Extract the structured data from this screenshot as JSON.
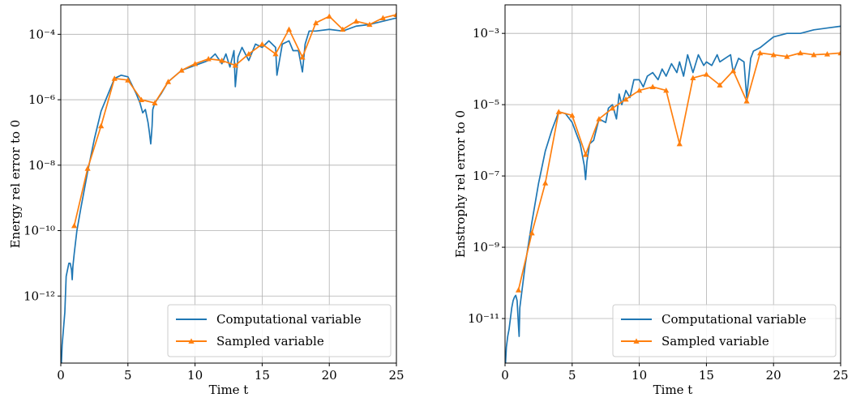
{
  "colors": {
    "computational": "#1f77b4",
    "sampled": "#ff7f0e",
    "grid": "#b0b0b0",
    "axes": "#000000"
  },
  "chart_data": [
    {
      "type": "line",
      "ylabel": "Energy rel error to 0",
      "xlabel": "Time t",
      "log_y": true,
      "xlim": [
        0,
        25
      ],
      "ylim_log10": [
        -14.05,
        -3.1
      ],
      "x_ticks": [
        0,
        5,
        10,
        15,
        20,
        25
      ],
      "y_ticks_log10": [
        -12,
        -10,
        -8,
        -6,
        -4
      ],
      "grid": true,
      "legend_position": "lower right",
      "legend": [
        "Computational variable",
        "Sampled variable"
      ],
      "series": [
        {
          "name": "Computational variable",
          "style": "line",
          "x": [
            0,
            0.1,
            0.2,
            0.3,
            0.4,
            0.5,
            0.6,
            0.7,
            0.8,
            0.85,
            0.9,
            1.0,
            1.2,
            1.5,
            2,
            2.5,
            3,
            3.5,
            4,
            4.5,
            5,
            5.3,
            5.6,
            5.9,
            6.1,
            6.3,
            6.5,
            6.6,
            6.7,
            6.75,
            6.8,
            6.85,
            7.0,
            7.5,
            8,
            9,
            10,
            11,
            11.5,
            12,
            12.3,
            12.6,
            12.9,
            13.0,
            13.2,
            13.5,
            14,
            14.5,
            15,
            15.5,
            16,
            16.1,
            16.5,
            17,
            17.3,
            17.7,
            18,
            18.2,
            18.5,
            19,
            20,
            21,
            22,
            23,
            24,
            25
          ],
          "y_log10": [
            -14.5,
            -13.5,
            -13.0,
            -12.5,
            -11.4,
            -11.2,
            -11.0,
            -11.0,
            -11.2,
            -11.5,
            -11.1,
            -10.7,
            -10.0,
            -9.3,
            -8.2,
            -7.2,
            -6.35,
            -5.85,
            -5.35,
            -5.25,
            -5.3,
            -5.55,
            -5.8,
            -6.1,
            -6.4,
            -6.3,
            -6.7,
            -7.0,
            -7.35,
            -7.1,
            -6.8,
            -6.3,
            -6.1,
            -5.8,
            -5.45,
            -5.1,
            -4.95,
            -4.8,
            -4.6,
            -4.9,
            -4.6,
            -5.0,
            -4.5,
            -5.6,
            -4.7,
            -4.4,
            -4.8,
            -4.3,
            -4.4,
            -4.2,
            -4.4,
            -5.25,
            -4.3,
            -4.2,
            -4.5,
            -4.5,
            -5.15,
            -4.3,
            -3.9,
            -3.9,
            -3.85,
            -3.9,
            -3.75,
            -3.7,
            -3.6,
            -3.5
          ]
        },
        {
          "name": "Sampled variable",
          "style": "line-markers",
          "x": [
            1,
            2,
            3,
            4,
            5,
            6,
            7,
            8,
            9,
            10,
            11,
            12,
            13,
            14,
            15,
            16,
            17,
            18,
            19,
            20,
            21,
            22,
            23,
            24,
            25
          ],
          "y_log10": [
            -9.85,
            -8.1,
            -6.8,
            -5.35,
            -5.4,
            -6.0,
            -6.1,
            -5.45,
            -5.1,
            -4.9,
            -4.75,
            -4.8,
            -4.95,
            -4.6,
            -4.3,
            -4.6,
            -3.85,
            -4.7,
            -3.65,
            -3.45,
            -3.85,
            -3.6,
            -3.7,
            -3.5,
            -3.4
          ]
        }
      ]
    },
    {
      "type": "line",
      "ylabel": "Enstrophy rel error to 0",
      "xlabel": "Time t",
      "log_y": true,
      "xlim": [
        0,
        25
      ],
      "ylim_log10": [
        -12.25,
        -2.2
      ],
      "x_ticks": [
        0,
        5,
        10,
        15,
        20,
        25
      ],
      "y_ticks_log10": [
        -11,
        -9,
        -7,
        -5,
        -3
      ],
      "grid": true,
      "legend_position": "lower right",
      "legend": [
        "Computational variable",
        "Sampled variable"
      ],
      "series": [
        {
          "name": "Computational variable",
          "style": "line",
          "x": [
            0,
            0.1,
            0.2,
            0.3,
            0.4,
            0.5,
            0.6,
            0.7,
            0.8,
            0.9,
            1.0,
            1.05,
            1.1,
            1.5,
            2,
            2.5,
            3,
            3.5,
            4,
            4.5,
            5,
            5.3,
            5.6,
            5.9,
            6.0,
            6.1,
            6.3,
            6.6,
            7,
            7.5,
            7.7,
            8,
            8.3,
            8.5,
            8.7,
            9,
            9.3,
            9.6,
            10,
            10.3,
            10.6,
            11,
            11.4,
            11.7,
            12,
            12.4,
            12.8,
            13,
            13.3,
            13.6,
            14,
            14.4,
            14.8,
            15,
            15.4,
            15.8,
            16,
            16.4,
            16.8,
            17,
            17.4,
            17.8,
            18,
            18.3,
            18.5,
            19,
            20,
            21,
            22,
            23,
            24,
            25
          ],
          "y_log10": [
            -12.5,
            -11.8,
            -11.5,
            -11.3,
            -11.0,
            -10.7,
            -10.5,
            -10.4,
            -10.35,
            -10.5,
            -11.2,
            -11.5,
            -10.7,
            -9.5,
            -8.3,
            -7.2,
            -6.3,
            -5.7,
            -5.2,
            -5.25,
            -5.5,
            -5.8,
            -6.1,
            -6.7,
            -7.1,
            -6.6,
            -6.1,
            -6.0,
            -5.4,
            -5.5,
            -5.1,
            -5.0,
            -5.4,
            -4.7,
            -5.0,
            -4.6,
            -4.8,
            -4.3,
            -4.3,
            -4.5,
            -4.2,
            -4.1,
            -4.3,
            -4.0,
            -4.2,
            -3.85,
            -4.1,
            -3.8,
            -4.2,
            -3.6,
            -4.1,
            -3.6,
            -3.9,
            -3.8,
            -3.9,
            -3.6,
            -3.8,
            -3.7,
            -3.6,
            -4.1,
            -3.7,
            -3.8,
            -4.8,
            -3.7,
            -3.5,
            -3.4,
            -3.1,
            -3.0,
            -3.0,
            -2.9,
            -2.85,
            -2.8
          ]
        },
        {
          "name": "Sampled variable",
          "style": "line-markers",
          "x": [
            1,
            2,
            3,
            4,
            5,
            6,
            7,
            8,
            9,
            10,
            11,
            12,
            13,
            14,
            15,
            16,
            17,
            18,
            19,
            20,
            21,
            22,
            23,
            24,
            25
          ],
          "y_log10": [
            -10.2,
            -8.6,
            -7.2,
            -5.2,
            -5.3,
            -6.4,
            -5.4,
            -5.1,
            -4.85,
            -4.6,
            -4.5,
            -4.6,
            -6.1,
            -4.25,
            -4.15,
            -4.45,
            -4.05,
            -4.9,
            -3.55,
            -3.6,
            -3.65,
            -3.55,
            -3.6,
            -3.58,
            -3.55
          ]
        }
      ]
    }
  ]
}
